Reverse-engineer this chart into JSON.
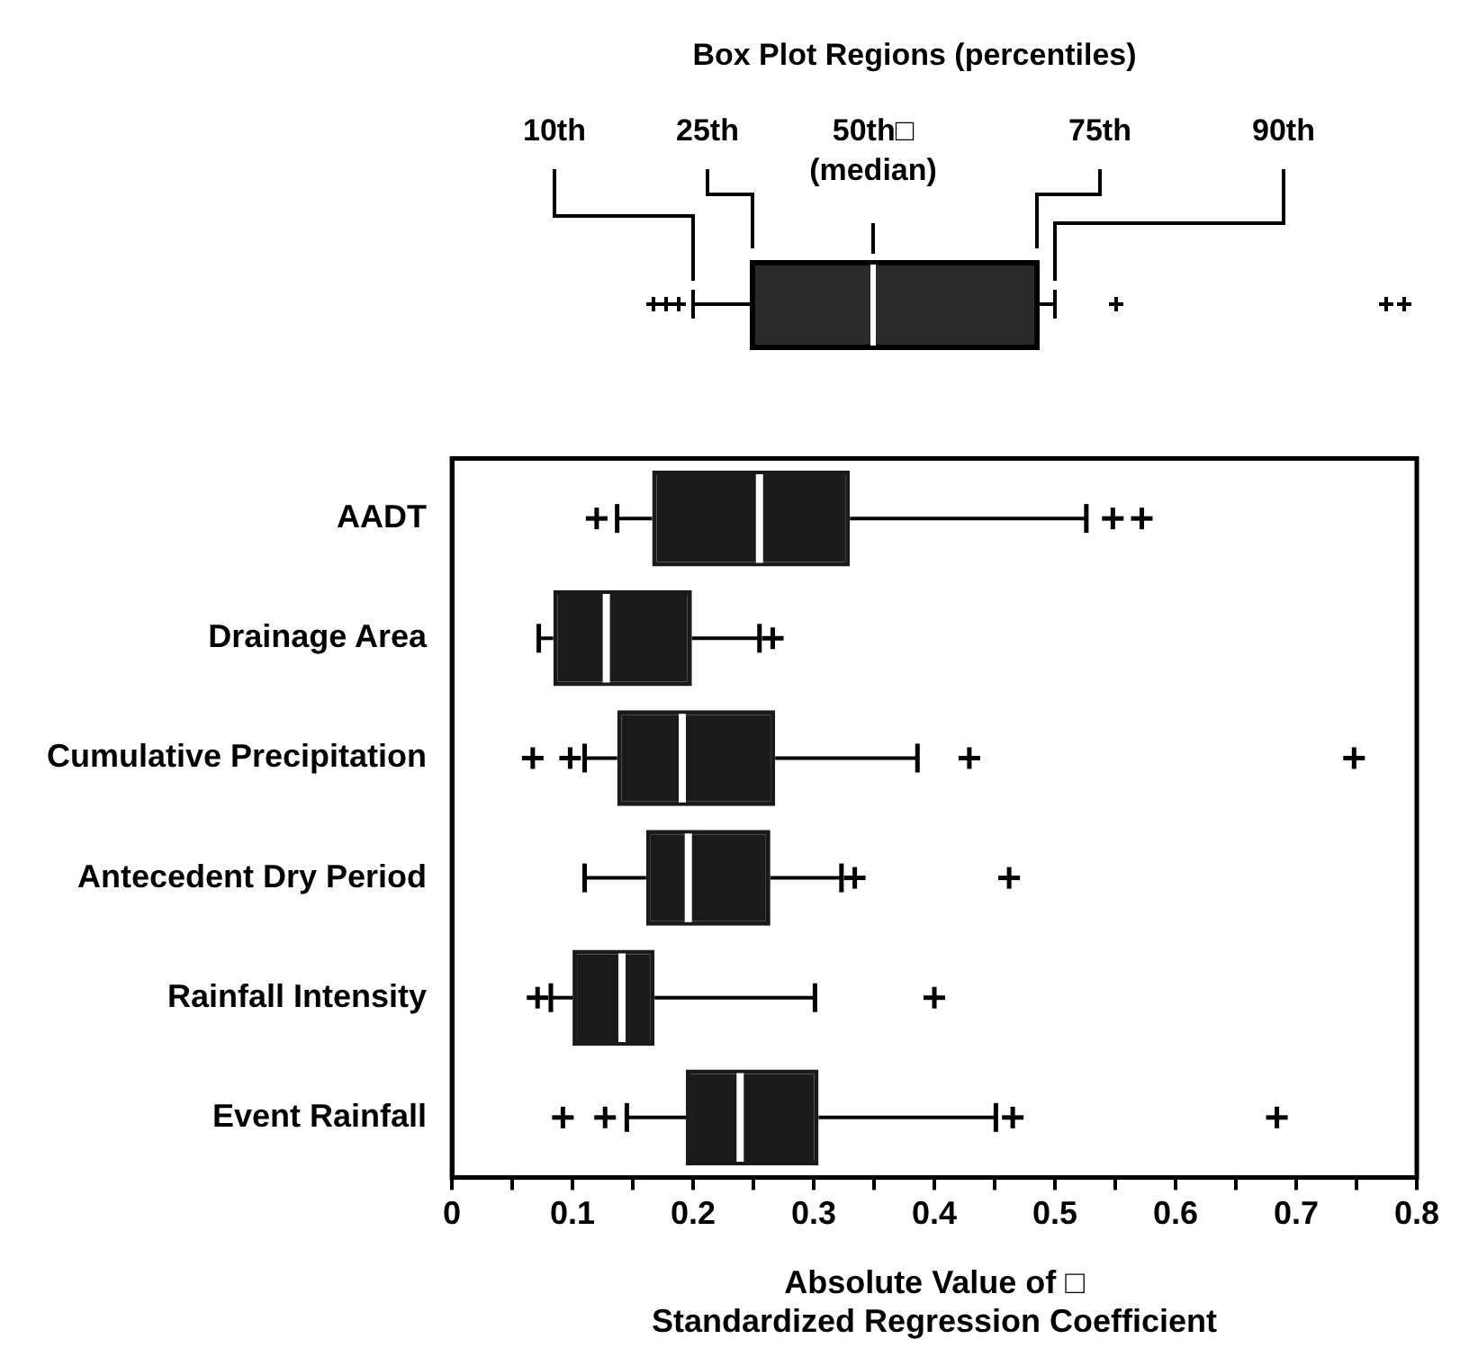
{
  "chart_data": {
    "type": "box",
    "orientation": "horizontal",
    "xlabel": "Absolute Value of □\nStandardized Regression Coefficient",
    "annotations": [
      "Box Plot Regions (percentiles)",
      "10th",
      "25th",
      "50th□\n(median)",
      "75th",
      "90th"
    ],
    "categories": [
      "AADT",
      "Drainage Area",
      "Cumulative Precipitation",
      "Antecedent Dry Period",
      "Rainfall Intensity",
      "Event Rainfall"
    ],
    "series": [
      {
        "color": "#1a1a1a",
        "boxes": [
          {
            "low": 0.137,
            "q1": 0.166,
            "median": 0.255,
            "q3": 0.33,
            "high": 0.526,
            "outliers": [
              0.12,
              0.548,
              0.572
            ]
          },
          {
            "low": 0.072,
            "q1": 0.084,
            "median": 0.128,
            "q3": 0.199,
            "high": 0.255,
            "outliers": [
              0.266
            ]
          },
          {
            "low": 0.11,
            "q1": 0.137,
            "median": 0.191,
            "q3": 0.268,
            "high": 0.386,
            "outliers": [
              0.067,
              0.098,
              0.429,
              0.748
            ]
          },
          {
            "low": 0.11,
            "q1": 0.161,
            "median": 0.196,
            "q3": 0.264,
            "high": 0.323,
            "outliers": [
              0.334,
              0.462
            ]
          },
          {
            "low": 0.082,
            "q1": 0.1,
            "median": 0.141,
            "q3": 0.168,
            "high": 0.301,
            "outliers": [
              0.071,
              0.4
            ]
          },
          {
            "low": 0.145,
            "q1": 0.194,
            "median": 0.239,
            "q3": 0.304,
            "high": 0.451,
            "outliers": [
              0.092,
              0.127,
              0.465,
              0.684
            ]
          }
        ]
      }
    ],
    "xlim": [
      0,
      0.8
    ],
    "xticks": [
      0,
      {
        "value": 0.05,
        "label": null
      },
      0.1,
      {
        "value": 0.15,
        "label": null
      },
      0.2,
      {
        "value": 0.25,
        "label": null
      },
      0.3,
      {
        "value": 0.35,
        "label": null
      },
      0.4,
      {
        "value": 0.45,
        "label": null
      },
      0.5,
      {
        "value": 0.55,
        "label": null
      },
      0.6,
      {
        "value": 0.65,
        "label": null
      },
      0.7,
      {
        "value": 0.75,
        "label": null
      },
      0.8
    ],
    "grid": false,
    "legend": false
  }
}
